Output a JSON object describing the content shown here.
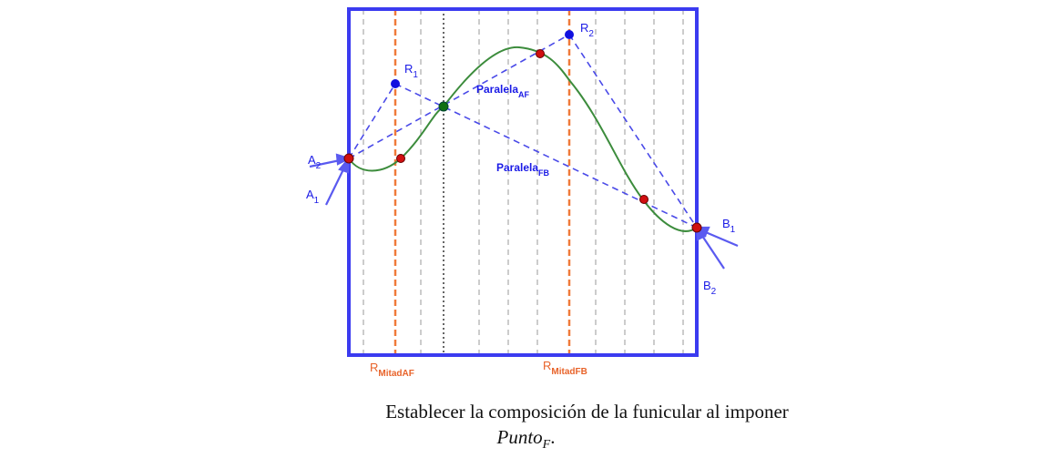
{
  "labels": {
    "A2": {
      "main": "A",
      "sub": "2"
    },
    "A1": {
      "main": "A",
      "sub": "1"
    },
    "R1": {
      "main": "R",
      "sub": "1"
    },
    "R2": {
      "main": "R",
      "sub": "2"
    },
    "B1": {
      "main": "B",
      "sub": "1"
    },
    "B2": {
      "main": "B",
      "sub": "2"
    },
    "paralela_af": {
      "main": "Paralela",
      "sub": "AF"
    },
    "paralela_fb": {
      "main": "Paralela",
      "sub": "FB"
    },
    "r_mitad_af": {
      "main": "R",
      "sub": "MitadAF"
    },
    "r_mitad_fb": {
      "main": "R",
      "sub": "MitadFB"
    }
  },
  "caption": {
    "line1": "Establecer la composición de la funicular al imponer",
    "line2_main": "Punto",
    "line2_sub": "F",
    "line2_end": "."
  },
  "colors": {
    "frame": "#3b3bf0",
    "dashed_blue": "#4a4ae8",
    "orange": "#f07a3a",
    "green_curve": "#3c8c3c",
    "red_point": "#d01010",
    "green_point": "#107010",
    "blue_point": "#1010e0",
    "grid": "#999999"
  }
}
